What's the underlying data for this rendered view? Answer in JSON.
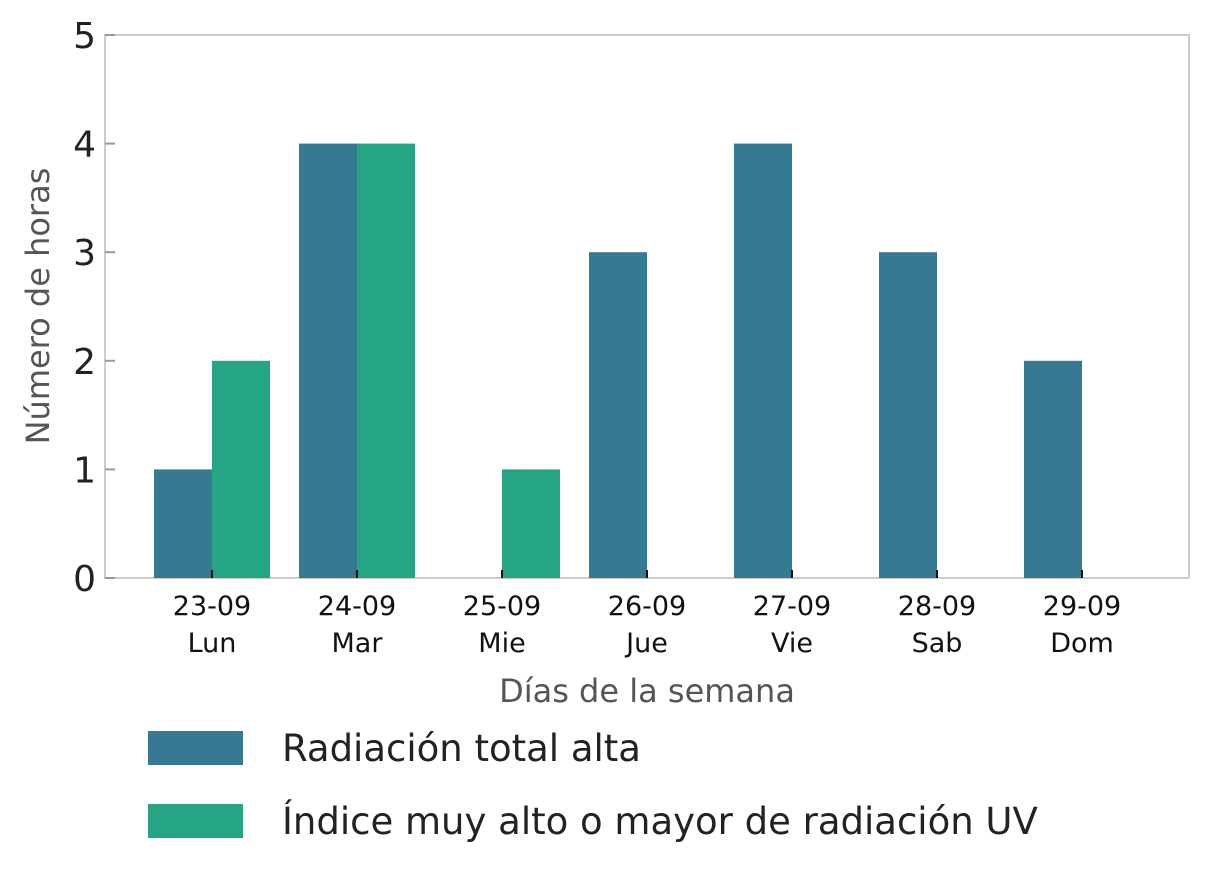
{
  "chart_data": {
    "type": "bar",
    "title": "",
    "xlabel": "Días de la semana",
    "ylabel": "Número de horas",
    "ylim": [
      0,
      5
    ],
    "yticks": [
      0,
      1,
      2,
      3,
      4,
      5
    ],
    "categories": [
      {
        "date": "23-09",
        "day": "Lun"
      },
      {
        "date": "24-09",
        "day": "Mar"
      },
      {
        "date": "25-09",
        "day": "Mie"
      },
      {
        "date": "26-09",
        "day": "Jue"
      },
      {
        "date": "27-09",
        "day": "Vie"
      },
      {
        "date": "28-09",
        "day": "Sab"
      },
      {
        "date": "29-09",
        "day": "Dom"
      }
    ],
    "series": [
      {
        "name": "Radiación total alta",
        "color": "#367993",
        "values": [
          1,
          4,
          0,
          3,
          4,
          3,
          2
        ]
      },
      {
        "name": "Índice muy alto o mayor de radiación UV",
        "color": "#26a584",
        "values": [
          2,
          4,
          1,
          0,
          0,
          0,
          0
        ]
      }
    ],
    "grid": false,
    "legend": "bottom"
  }
}
